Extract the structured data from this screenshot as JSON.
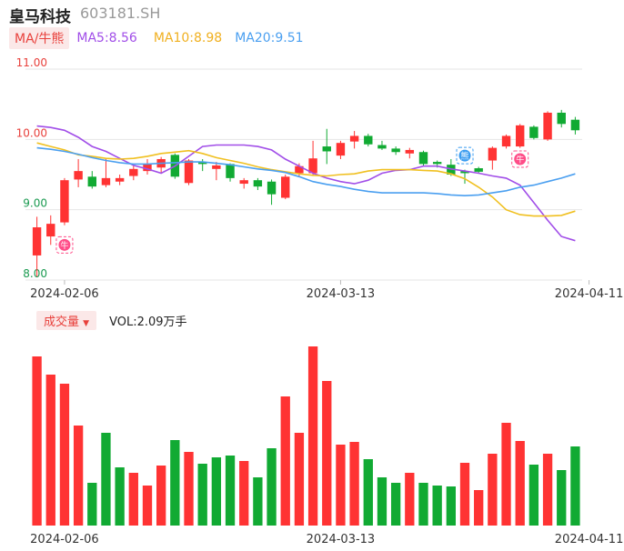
{
  "header": {
    "name": "皇马科技",
    "code": "603181.SH"
  },
  "ma_legend": {
    "tag": "MA/牛熊",
    "ma5": "MA5:8.56",
    "ma10": "MA10:8.98",
    "ma20": "MA20:9.51"
  },
  "volume_legend": {
    "tag": "成交量",
    "arrow": "▼",
    "value": "VOL:2.09万手"
  },
  "colors": {
    "up": "#ff3333",
    "down": "#11aa33",
    "ma5": "#a14ee8",
    "ma10": "#f0c020",
    "ma20": "#4a9ff0",
    "grid": "#e6e6e6",
    "red_axis": "#e8413c",
    "green_axis": "#1a9a50"
  },
  "chart_data": [
    {
      "type": "candlestick",
      "ylim": [
        8.0,
        11.0
      ],
      "y_ticks": [
        "11.00",
        "10.00",
        "9.00",
        "8.00"
      ],
      "x_ticks": [
        {
          "index": 2,
          "label": "2024-02-06"
        },
        {
          "index": 22,
          "label": "2024-03-13"
        },
        {
          "index": 40,
          "label": "2024-04-11"
        }
      ],
      "candles": [
        {
          "o": 8.35,
          "c": 8.75,
          "h": 8.9,
          "l": 8.05
        },
        {
          "o": 8.62,
          "c": 8.8,
          "h": 8.92,
          "l": 8.5
        },
        {
          "o": 8.82,
          "c": 9.42,
          "h": 9.45,
          "l": 8.78
        },
        {
          "o": 9.43,
          "c": 9.55,
          "h": 9.72,
          "l": 9.32
        },
        {
          "o": 9.47,
          "c": 9.33,
          "h": 9.55,
          "l": 9.3
        },
        {
          "o": 9.35,
          "c": 9.45,
          "h": 9.72,
          "l": 9.32
        },
        {
          "o": 9.4,
          "c": 9.45,
          "h": 9.5,
          "l": 9.35
        },
        {
          "o": 9.48,
          "c": 9.58,
          "h": 9.63,
          "l": 9.42
        },
        {
          "o": 9.55,
          "c": 9.65,
          "h": 9.72,
          "l": 9.5
        },
        {
          "o": 9.6,
          "c": 9.72,
          "h": 9.75,
          "l": 9.52
        },
        {
          "o": 9.78,
          "c": 9.47,
          "h": 9.8,
          "l": 9.44
        },
        {
          "o": 9.38,
          "c": 9.7,
          "h": 9.72,
          "l": 9.35
        },
        {
          "o": 9.68,
          "c": 9.65,
          "h": 9.72,
          "l": 9.55
        },
        {
          "o": 9.58,
          "c": 9.63,
          "h": 9.68,
          "l": 9.42
        },
        {
          "o": 9.65,
          "c": 9.45,
          "h": 9.66,
          "l": 9.4
        },
        {
          "o": 9.37,
          "c": 9.42,
          "h": 9.45,
          "l": 9.3
        },
        {
          "o": 9.42,
          "c": 9.33,
          "h": 9.45,
          "l": 9.28
        },
        {
          "o": 9.4,
          "c": 9.22,
          "h": 9.43,
          "l": 9.07
        },
        {
          "o": 9.17,
          "c": 9.47,
          "h": 9.5,
          "l": 9.15
        },
        {
          "o": 9.52,
          "c": 9.62,
          "h": 9.66,
          "l": 9.48
        },
        {
          "o": 9.52,
          "c": 9.73,
          "h": 9.98,
          "l": 9.48
        },
        {
          "o": 9.9,
          "c": 9.83,
          "h": 10.15,
          "l": 9.65
        },
        {
          "o": 9.77,
          "c": 9.95,
          "h": 9.98,
          "l": 9.72
        },
        {
          "o": 9.97,
          "c": 10.05,
          "h": 10.12,
          "l": 9.87
        },
        {
          "o": 10.05,
          "c": 9.93,
          "h": 10.08,
          "l": 9.9
        },
        {
          "o": 9.92,
          "c": 9.87,
          "h": 9.98,
          "l": 9.85
        },
        {
          "o": 9.87,
          "c": 9.82,
          "h": 9.9,
          "l": 9.78
        },
        {
          "o": 9.8,
          "c": 9.85,
          "h": 9.88,
          "l": 9.73
        },
        {
          "o": 9.82,
          "c": 9.65,
          "h": 9.84,
          "l": 9.62
        },
        {
          "o": 9.68,
          "c": 9.65,
          "h": 9.7,
          "l": 9.6
        },
        {
          "o": 9.64,
          "c": 9.5,
          "h": 9.72,
          "l": 9.48
        },
        {
          "o": 9.55,
          "c": 9.52,
          "h": 9.57,
          "l": 9.37
        },
        {
          "o": 9.59,
          "c": 9.54,
          "h": 9.61,
          "l": 9.52
        },
        {
          "o": 9.7,
          "c": 9.88,
          "h": 9.9,
          "l": 9.57
        },
        {
          "o": 9.9,
          "c": 10.05,
          "h": 10.07,
          "l": 9.87
        },
        {
          "o": 9.9,
          "c": 10.2,
          "h": 10.22,
          "l": 9.88
        },
        {
          "o": 10.18,
          "c": 10.02,
          "h": 10.2,
          "l": 10.0
        },
        {
          "o": 10.0,
          "c": 10.38,
          "h": 10.4,
          "l": 9.98
        },
        {
          "o": 10.38,
          "c": 10.22,
          "h": 10.42,
          "l": 10.17
        },
        {
          "o": 10.28,
          "c": 10.13,
          "h": 10.32,
          "l": 10.07
        }
      ],
      "ma5": [
        10.19,
        10.17,
        10.13,
        10.03,
        9.9,
        9.83,
        9.73,
        9.63,
        9.58,
        9.52,
        9.62,
        9.76,
        9.9,
        9.92,
        9.92,
        9.92,
        9.9,
        9.85,
        9.72,
        9.62,
        9.52,
        9.45,
        9.4,
        9.37,
        9.42,
        9.52,
        9.56,
        9.57,
        9.62,
        9.62,
        9.58,
        9.55,
        9.52,
        9.48,
        9.45,
        9.35,
        9.1,
        8.85,
        8.62,
        8.56
      ],
      "ma10": [
        9.95,
        9.9,
        9.85,
        9.78,
        9.76,
        9.73,
        9.72,
        9.73,
        9.76,
        9.8,
        9.82,
        9.84,
        9.8,
        9.74,
        9.7,
        9.66,
        9.61,
        9.57,
        9.54,
        9.51,
        9.49,
        9.48,
        9.5,
        9.51,
        9.55,
        9.57,
        9.57,
        9.57,
        9.56,
        9.55,
        9.51,
        9.44,
        9.32,
        9.18,
        9.0,
        8.93,
        8.91,
        8.91,
        8.92,
        8.98
      ],
      "ma20": [
        9.88,
        9.86,
        9.83,
        9.79,
        9.74,
        9.7,
        9.67,
        9.65,
        9.65,
        9.66,
        9.67,
        9.68,
        9.68,
        9.66,
        9.64,
        9.61,
        9.58,
        9.56,
        9.53,
        9.47,
        9.4,
        9.36,
        9.33,
        9.29,
        9.26,
        9.24,
        9.24,
        9.24,
        9.24,
        9.23,
        9.21,
        9.2,
        9.21,
        9.24,
        9.27,
        9.32,
        9.35,
        9.4,
        9.45,
        9.51
      ],
      "badges": [
        {
          "index": 2,
          "price": 8.5,
          "label": "牛",
          "type": "bull"
        },
        {
          "index": 31,
          "price": 9.77,
          "label": "熊",
          "type": "bear"
        },
        {
          "index": 35,
          "price": 9.72,
          "label": "牛",
          "type": "bull"
        }
      ]
    },
    {
      "type": "bar",
      "title": "成交量",
      "values": [
        9.3,
        8.3,
        7.8,
        5.5,
        2.35,
        5.1,
        3.2,
        2.9,
        2.2,
        3.3,
        4.7,
        4.05,
        3.4,
        3.75,
        3.85,
        3.55,
        2.65,
        4.25,
        7.1,
        5.1,
        9.85,
        7.95,
        4.45,
        4.6,
        3.65,
        2.65,
        2.35,
        2.9,
        2.35,
        2.2,
        2.15,
        3.45,
        1.95,
        3.95,
        5.65,
        4.65,
        3.35,
        3.95,
        3.05,
        4.35
      ],
      "colors_up": [
        true,
        true,
        true,
        true,
        false,
        false,
        false,
        true,
        true,
        true,
        false,
        true,
        false,
        false,
        false,
        true,
        false,
        false,
        true,
        true,
        true,
        true,
        true,
        true,
        false,
        false,
        false,
        true,
        false,
        false,
        false,
        true,
        true,
        true,
        true,
        true,
        false,
        true,
        false,
        false
      ],
      "ymax": 10.0
    }
  ]
}
